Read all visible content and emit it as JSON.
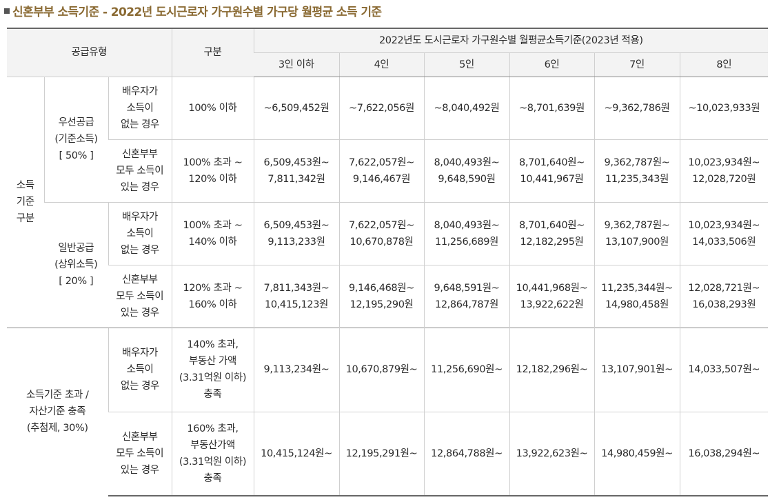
{
  "title": "신혼부부 소득기준 - 2022년 도시근로자 가구원수별 가구당 월평균 소득 기준",
  "header": {
    "supply_type": "공급유형",
    "category": "구분",
    "span_title": "2022년도 도시근로자 가구원수별 월평균소득기준(2023년 적용)",
    "columns": [
      "3인 이하",
      "4인",
      "5인",
      "6인",
      "7인",
      "8인"
    ]
  },
  "groups": {
    "income_criteria": "소득\n기준\n구분",
    "priority": "우선공급\n(기준소득)\n[ 50% ]",
    "general": "일반공급\n(상위소득)\n[ 20% ]",
    "exceed": "소득기준 초과 /\n자산기준 충족\n(추첨제, 30%)"
  },
  "rows": [
    {
      "condition": "배우자가\n소득이\n없는 경우",
      "range": "100% 이하",
      "values": [
        "~6,509,452원",
        "~7,622,056원",
        "~8,040,492원",
        "~8,701,639원",
        "~9,362,786원",
        "~10,023,933원"
      ]
    },
    {
      "condition": "신혼부부\n모두 소득이\n있는 경우",
      "range": "100% 초과 ~\n120% 이하",
      "values": [
        "6,509,453원~\n7,811,342원",
        "7,622,057원~\n9,146,467원",
        "8,040,493원~\n9,648,590원",
        "8,701,640원~\n10,441,967원",
        "9,362,787원~\n11,235,343원",
        "10,023,934원~\n12,028,720원"
      ]
    },
    {
      "condition": "배우자가\n소득이\n없는 경우",
      "range": "100% 초과 ~\n140% 이하",
      "values": [
        "6,509,453원~\n9,113,233원",
        "7,622,057원~\n10,670,878원",
        "8,040,493원~\n11,256,689원",
        "8,701,640원~\n12,182,295원",
        "9,362,787원~\n13,107,900원",
        "10,023,934원~\n14,033,506원"
      ]
    },
    {
      "condition": "신혼부부\n모두 소득이\n있는 경우",
      "range": "120% 초과 ~\n160% 이하",
      "values": [
        "7,811,343원~\n10,415,123원",
        "9,146,468원~\n12,195,290원",
        "9,648,591원~\n12,864,787원",
        "10,441,968원~\n13,922,622원",
        "11,235,344원~\n14,980,458원",
        "12,028,721원~\n16,038,293원"
      ]
    },
    {
      "condition": "배우자가\n소득이\n없는 경우",
      "range": "140% 초과,\n부동산 가액\n(3.31억원 이하)\n충족",
      "values": [
        "9,113,234원~",
        "10,670,879원~",
        "11,256,690원~",
        "12,182,296원~",
        "13,107,901원~",
        "14,033,507원~"
      ]
    },
    {
      "condition": "신혼부부\n모두 소득이\n있는 경우",
      "range": "160% 초과,\n부동산가액\n(3.31억원 이하)\n충족",
      "values": [
        "10,415,124원~",
        "12,195,291원~",
        "12,864,788원~",
        "13,922,623원~",
        "14,980,459원~",
        "16,038,294원~"
      ]
    }
  ]
}
